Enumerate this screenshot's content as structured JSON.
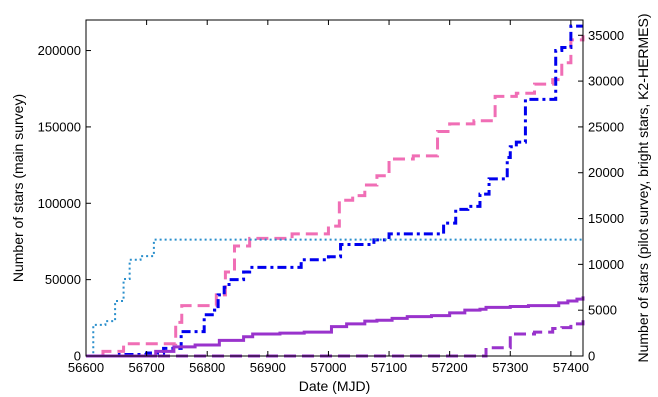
{
  "chart_data": {
    "type": "line",
    "title": "",
    "xlabel": "Date (MJD)",
    "ylabel_left": "Number of stars (main survey)",
    "ylabel_right": "Number of stars (pilot survey, bright stars, K2-HERMES)",
    "xlim": [
      56600,
      57420
    ],
    "ylim_left": [
      0,
      220000
    ],
    "ylim_right": [
      0,
      36666.67
    ],
    "xticks": [
      56600,
      56700,
      56800,
      56900,
      57000,
      57100,
      57200,
      57300,
      57400
    ],
    "yticks_left": [
      0,
      50000,
      100000,
      150000,
      200000
    ],
    "yticks_right": [
      0,
      5000,
      10000,
      15000,
      20000,
      25000,
      30000,
      35000
    ],
    "grid": false,
    "legend": "none",
    "series": [
      {
        "axis": "left",
        "color": "#f06eb5",
        "style": "dashed-thick",
        "step": true,
        "x": [
          56600,
          56628,
          56662,
          56700,
          56748,
          56758,
          56795,
          56815,
          56830,
          56845,
          56870,
          56905,
          56940,
          57000,
          57018,
          57040,
          57060,
          57080,
          57100,
          57140,
          57180,
          57200,
          57240,
          57275,
          57310,
          57340,
          57370,
          57385,
          57400,
          57420
        ],
        "y": [
          0,
          3000,
          8000,
          8000,
          22000,
          33000,
          33000,
          40000,
          55000,
          72000,
          77000,
          77000,
          80000,
          85000,
          102000,
          105000,
          112000,
          118000,
          129000,
          131000,
          147000,
          152000,
          154000,
          170000,
          172000,
          178000,
          181000,
          192000,
          207000,
          210000
        ]
      },
      {
        "axis": "left",
        "color": "#0000ee",
        "style": "dashdot-thick",
        "step": true,
        "x": [
          56600,
          56655,
          56700,
          56728,
          56757,
          56795,
          56812,
          56818,
          56828,
          56836,
          56860,
          56870,
          56955,
          57000,
          57020,
          57075,
          57100,
          57150,
          57190,
          57210,
          57230,
          57250,
          57265,
          57295,
          57300,
          57310,
          57325,
          57365,
          57375,
          57385,
          57400,
          57420
        ],
        "y": [
          0,
          1000,
          2000,
          5000,
          16000,
          27000,
          30000,
          40000,
          45000,
          50000,
          55000,
          58000,
          63000,
          65000,
          73000,
          76000,
          80000,
          80000,
          87000,
          96000,
          98000,
          106000,
          116000,
          130000,
          137000,
          140000,
          168000,
          168000,
          200000,
          202000,
          216000,
          216000
        ]
      },
      {
        "axis": "right",
        "color": "#2a8fcc",
        "style": "dotted",
        "step": true,
        "x": [
          56600,
          56612,
          56632,
          56648,
          56662,
          56672,
          56690,
          56712,
          57420
        ],
        "y": [
          0,
          3400,
          3800,
          6000,
          8400,
          10500,
          10900,
          12700,
          12700
        ]
      },
      {
        "axis": "right",
        "color": "#9933cc",
        "style": "solid-thick",
        "step": true,
        "x": [
          56600,
          56700,
          56715,
          56745,
          56780,
          56820,
          56860,
          56875,
          56920,
          56960,
          57005,
          57030,
          57060,
          57080,
          57105,
          57130,
          57170,
          57200,
          57225,
          57250,
          57260,
          57300,
          57330,
          57360,
          57380,
          57395,
          57410,
          57420
        ],
        "y": [
          0,
          0,
          500,
          1000,
          1200,
          1700,
          2100,
          2400,
          2500,
          2600,
          3200,
          3500,
          3800,
          3900,
          4100,
          4300,
          4400,
          4700,
          5000,
          5100,
          5300,
          5400,
          5500,
          5500,
          5800,
          6000,
          6200,
          6500
        ]
      },
      {
        "axis": "right",
        "color": "#9933cc",
        "style": "dashed-thick",
        "step": true,
        "x": [
          56600,
          57250,
          57260,
          57300,
          57340,
          57370,
          57385,
          57400,
          57420
        ],
        "y": [
          0,
          0,
          900,
          2400,
          2600,
          3000,
          3100,
          3500,
          3900
        ]
      }
    ]
  }
}
